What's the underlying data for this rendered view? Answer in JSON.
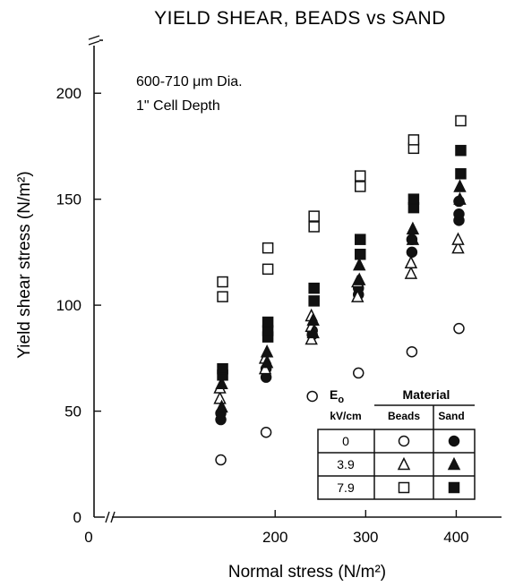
{
  "chart_data": {
    "type": "scatter",
    "title": "YIELD SHEAR, BEADS vs SAND",
    "xlabel": "Normal stress (N/m²)",
    "ylabel": "Yield shear stress (N/m²)",
    "xlim": [
      0,
      450
    ],
    "ylim": [
      0,
      225
    ],
    "xticks": [
      0,
      200,
      300,
      400
    ],
    "yticks": [
      0,
      50,
      100,
      150,
      200
    ],
    "annotations": [
      "600-710 μm Dia.",
      "1\" Cell Depth"
    ],
    "grid": false,
    "legend": {
      "placement": "bottom-right",
      "header_e": "E",
      "header_e_sub": "o",
      "header_material": "Material",
      "header_units": "kV/cm",
      "col_beads": "Beads",
      "col_sand": "Sand",
      "rows": [
        "0",
        "3.9",
        "7.9"
      ]
    },
    "series": [
      {
        "field": "0",
        "material": "Beads",
        "marker": "open-circle",
        "points": [
          [
            140,
            27
          ],
          [
            190,
            40
          ],
          [
            241,
            57
          ],
          [
            292,
            68
          ],
          [
            351,
            78
          ],
          [
            403,
            89
          ]
        ]
      },
      {
        "field": "0",
        "material": "Sand",
        "marker": "filled-circle",
        "points": [
          [
            140,
            46
          ],
          [
            140,
            49
          ],
          [
            190,
            66
          ],
          [
            190,
            70
          ],
          [
            241,
            86
          ],
          [
            241,
            88
          ],
          [
            292,
            105
          ],
          [
            292,
            108
          ],
          [
            351,
            125
          ],
          [
            351,
            131
          ],
          [
            403,
            140
          ],
          [
            403,
            143
          ],
          [
            403,
            149
          ]
        ]
      },
      {
        "field": "3.9",
        "material": "Beads",
        "marker": "open-triangle",
        "points": [
          [
            140,
            56
          ],
          [
            140,
            61
          ],
          [
            190,
            70
          ],
          [
            190,
            75
          ],
          [
            241,
            84
          ],
          [
            241,
            90
          ],
          [
            241,
            95
          ],
          [
            292,
            104
          ],
          [
            292,
            111
          ],
          [
            351,
            115
          ],
          [
            351,
            120
          ],
          [
            403,
            127
          ],
          [
            403,
            131
          ]
        ]
      },
      {
        "field": "3.9",
        "material": "Sand",
        "marker": "filled-triangle",
        "points": [
          [
            140,
            52
          ],
          [
            140,
            63
          ],
          [
            190,
            73
          ],
          [
            190,
            78
          ],
          [
            241,
            87
          ],
          [
            241,
            93
          ],
          [
            292,
            112
          ],
          [
            292,
            119
          ],
          [
            351,
            131
          ],
          [
            351,
            136
          ],
          [
            403,
            150
          ],
          [
            403,
            156
          ]
        ]
      },
      {
        "field": "7.9",
        "material": "Beads",
        "marker": "open-square",
        "points": [
          [
            140,
            104
          ],
          [
            140,
            111
          ],
          [
            190,
            117
          ],
          [
            190,
            127
          ],
          [
            241,
            137
          ],
          [
            241,
            142
          ],
          [
            292,
            156
          ],
          [
            292,
            161
          ],
          [
            351,
            174
          ],
          [
            351,
            178
          ],
          [
            403,
            187
          ]
        ]
      },
      {
        "field": "7.9",
        "material": "Sand",
        "marker": "filled-square",
        "points": [
          [
            140,
            67
          ],
          [
            140,
            70
          ],
          [
            190,
            85
          ],
          [
            190,
            88
          ],
          [
            190,
            92
          ],
          [
            241,
            102
          ],
          [
            241,
            108
          ],
          [
            292,
            124
          ],
          [
            292,
            131
          ],
          [
            351,
            146
          ],
          [
            351,
            150
          ],
          [
            403,
            162
          ],
          [
            403,
            173
          ]
        ]
      }
    ]
  }
}
